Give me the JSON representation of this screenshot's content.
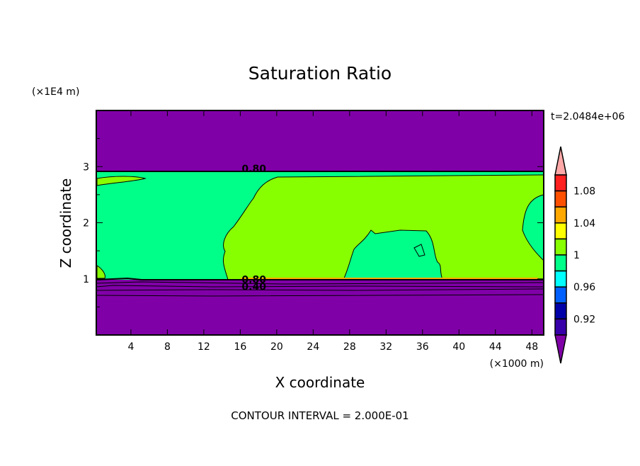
{
  "chart_data": {
    "type": "heatmap",
    "title": "Saturation Ratio",
    "xlabel": "X coordinate",
    "ylabel": "Z coordinate",
    "x_unit": "(×1000 m)",
    "y_unit": "(×1E4 m)",
    "time_label": "t=2.0484e+06",
    "footer": "CONTOUR INTERVAL = 2.000E-01",
    "xlim": [
      0.2,
      49.3
    ],
    "ylim": [
      0,
      4
    ],
    "x_ticks": [
      "4",
      "8",
      "12",
      "16",
      "20",
      "24",
      "28",
      "32",
      "36",
      "40",
      "44",
      "48"
    ],
    "x_tick_values": [
      4,
      8,
      12,
      16,
      20,
      24,
      28,
      32,
      36,
      40,
      44,
      48
    ],
    "y_ticks": [
      "1",
      "2",
      "3"
    ],
    "y_tick_values": [
      1,
      2,
      3
    ],
    "contour_labels": [
      {
        "text": "0.80",
        "x": 17.5,
        "y": 2.95
      },
      {
        "text": "0.80",
        "x": 17.5,
        "y": 0.98
      },
      {
        "text": "0.40",
        "x": 17.5,
        "y": 0.85
      }
    ],
    "colorbar": {
      "levels": [
        0.92,
        0.96,
        1,
        1.04,
        1.08
      ],
      "tick_labels": [
        "1.08",
        "1.04",
        "1",
        "0.96",
        "0.92"
      ],
      "colors_top_to_bottom": [
        "#ffa8a8",
        "#ff2020",
        "#ff5000",
        "#ffa800",
        "#ffff00",
        "#88ff00",
        "#00ff88",
        "#00ffff",
        "#0060ff",
        "#0000a8",
        "#3800a8",
        "#8000a8"
      ]
    }
  }
}
